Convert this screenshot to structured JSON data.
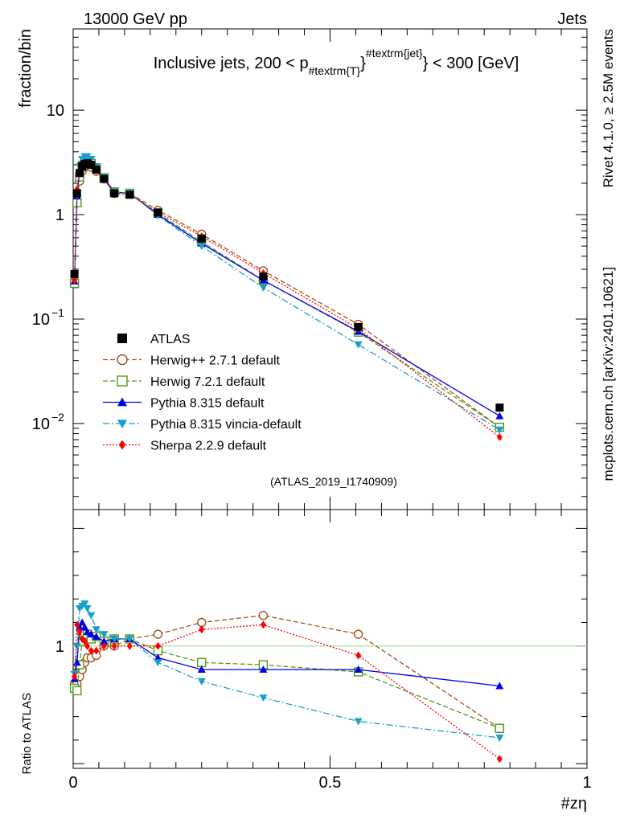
{
  "header": {
    "left": "13000 GeV pp",
    "right": "Jets"
  },
  "side_text": {
    "rivet": "Rivet 4.1.0, ≥ 2.5M events",
    "mcplots": "mcplots.cern.ch [arXiv:2401.10621]"
  },
  "chart_data": {
    "type": "line",
    "title": "Inclusive jets, 200 < p_{#textrm{T}}^{#textrm{jet}} < 300 [GeV]",
    "title_parts": {
      "pre": "Inclusive jets, 200 < p",
      "sub": "#textrm{T}",
      "mid": "}",
      "sup": "#textrm{jet}",
      "post": "} < 300 [GeV]"
    },
    "xlabel": "#zη",
    "ylabel": "fraction/bin",
    "ratio_ylabel": "Ratio to ATLAS",
    "watermark": "(ATLAS_2019_I1740909)",
    "xlim": [
      0,
      1
    ],
    "ylim": [
      0.0015,
      60
    ],
    "yscale": "log",
    "ratio_ylim": [
      0.48,
      1.58
    ],
    "x_ticks": [
      "0",
      "0.5",
      "1"
    ],
    "y_ticks": [
      {
        "value": 10,
        "label": "10",
        "exp": ""
      },
      {
        "value": 1,
        "label": "1",
        "exp": ""
      },
      {
        "value": 0.1,
        "label": "10",
        "exp": "−1"
      },
      {
        "value": 0.01,
        "label": "10",
        "exp": "−2"
      }
    ],
    "ratio_ticks": [
      "1"
    ],
    "x": [
      0.0025,
      0.0075,
      0.0125,
      0.0175,
      0.0225,
      0.0275,
      0.035,
      0.045,
      0.06,
      0.08,
      0.11,
      0.165,
      0.25,
      0.37,
      0.555,
      0.83
    ],
    "series": [
      {
        "name": "ATLAS",
        "color": "#000000",
        "marker": "square-filled",
        "dash": "none",
        "values": [
          0.27,
          1.6,
          2.5,
          2.9,
          3.05,
          3.1,
          3.0,
          2.7,
          2.2,
          1.6,
          1.55,
          1.05,
          0.59,
          0.255,
          0.084,
          0.0142
        ]
      },
      {
        "name": "Herwig++ 2.7.1 default",
        "color": "#a0521e",
        "marker": "circle-open",
        "dash": "6,3",
        "values": [
          0.23,
          1.35,
          2.1,
          2.6,
          2.85,
          2.95,
          2.85,
          2.6,
          2.2,
          1.6,
          1.6,
          1.1,
          0.65,
          0.29,
          0.089,
          0.0092
        ]
      },
      {
        "name": "Herwig 7.2.1 default",
        "color": "#4f9a1c",
        "marker": "square-open",
        "dash": "6,3",
        "values": [
          0.22,
          1.3,
          2.3,
          2.95,
          3.2,
          3.25,
          3.1,
          2.8,
          2.25,
          1.65,
          1.6,
          1.03,
          0.55,
          0.235,
          0.075,
          0.0092
        ]
      },
      {
        "name": "Pythia 8.315 default",
        "color": "#0000e6",
        "marker": "triangle-up",
        "dash": "none",
        "values": [
          0.23,
          1.5,
          2.7,
          3.2,
          3.3,
          3.3,
          3.15,
          2.8,
          2.25,
          1.65,
          1.6,
          1.0,
          0.53,
          0.235,
          0.076,
          0.0118
        ]
      },
      {
        "name": "Pythia 8.315 vincia-default",
        "color": "#19a0c8",
        "marker": "triangle-down",
        "dash": "8,3,2,3",
        "values": [
          0.24,
          1.6,
          2.9,
          3.4,
          3.6,
          3.6,
          3.4,
          2.9,
          2.3,
          1.65,
          1.6,
          0.98,
          0.5,
          0.2,
          0.057,
          0.0087
        ]
      },
      {
        "name": "Sherpa 2.2.9 default",
        "color": "#ff0000",
        "marker": "diamond",
        "dash": "2,2",
        "values": [
          0.235,
          1.75,
          2.65,
          3.0,
          3.1,
          3.1,
          2.95,
          2.65,
          2.2,
          1.6,
          1.55,
          1.05,
          0.62,
          0.275,
          0.081,
          0.0074
        ]
      }
    ],
    "ratio_series": [
      {
        "name": "Herwig++ 2.7.1 default",
        "values": [
          0.84,
          0.84,
          0.87,
          0.9,
          0.93,
          0.95,
          0.95,
          0.96,
          1.0,
          1.0,
          1.03,
          1.05,
          1.1,
          1.13,
          1.05,
          0.65
        ]
      },
      {
        "name": "Herwig 7.2.1 default",
        "values": [
          0.82,
          0.81,
          0.92,
          1.02,
          1.05,
          1.05,
          1.03,
          1.04,
          1.02,
          1.03,
          1.03,
          0.98,
          0.93,
          0.92,
          0.89,
          0.65
        ]
      },
      {
        "name": "Pythia 8.315 default",
        "values": [
          0.86,
          0.93,
          1.08,
          1.1,
          1.08,
          1.06,
          1.05,
          1.04,
          1.02,
          1.03,
          1.03,
          0.95,
          0.9,
          0.9,
          0.9,
          0.83
        ]
      },
      {
        "name": "Pythia 8.315 vincia-default",
        "values": [
          0.88,
          1.0,
          1.16,
          1.17,
          1.18,
          1.16,
          1.13,
          1.07,
          1.05,
          1.03,
          1.03,
          0.93,
          0.85,
          0.78,
          0.68,
          0.61
        ]
      },
      {
        "name": "Sherpa 2.2.9 default",
        "values": [
          0.87,
          1.09,
          1.06,
          1.03,
          1.02,
          1.0,
          0.98,
          0.98,
          1.0,
          1.0,
          1.0,
          1.0,
          1.07,
          1.09,
          0.96,
          0.52
        ]
      }
    ],
    "legend_position": "lower-left"
  }
}
